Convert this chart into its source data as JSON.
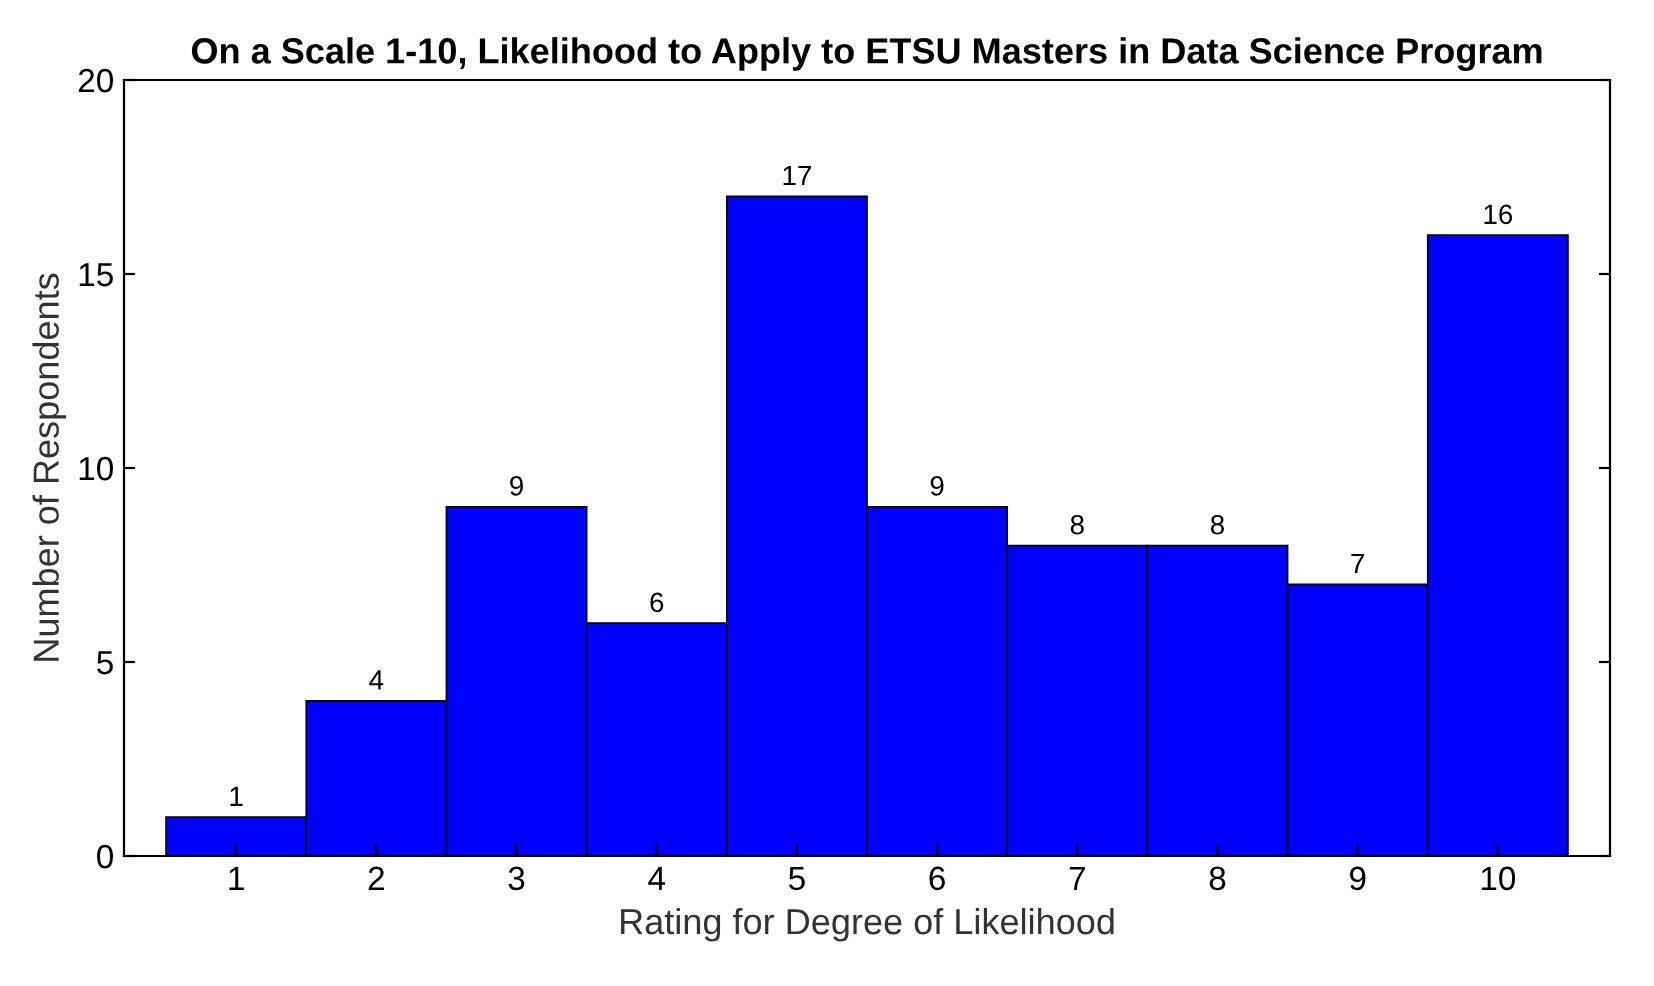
{
  "chart_data": {
    "type": "bar",
    "title": "On a Scale 1-10, Likelihood to Apply to ETSU Masters in Data Science Program",
    "xlabel": "Rating for Degree of Likelihood",
    "ylabel": "Number of Respondents",
    "categories": [
      "1",
      "2",
      "3",
      "4",
      "5",
      "6",
      "7",
      "8",
      "9",
      "10"
    ],
    "values": [
      1,
      4,
      9,
      6,
      17,
      9,
      8,
      8,
      7,
      16
    ],
    "color": "#0000ff",
    "ylim": [
      0,
      20
    ],
    "yticks": [
      0,
      5,
      10,
      15,
      20
    ],
    "data_labels": true,
    "grid": false
  }
}
